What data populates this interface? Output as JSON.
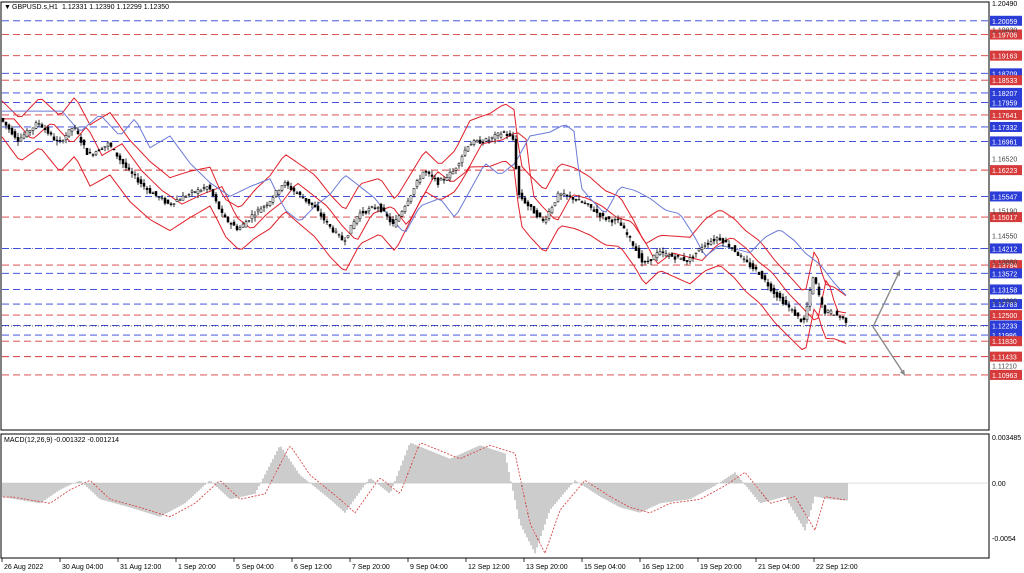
{
  "header": {
    "symbol_label": "GBPUSD.s,H1",
    "ohlc_label": "1.12331 1.12390 1.12299 1.12350"
  },
  "macd_header": {
    "label": "MACD(12,26,9)",
    "values": "-0.001322 -0.001214"
  },
  "colors": {
    "blue_level": "#2b3dd6",
    "red_level": "#d63a3a",
    "band": "#e0202a",
    "ma": "#6b7bd6",
    "candle": "#000000",
    "macd_hist": "#9a9a9a",
    "signal": "#d64a4a",
    "arrow": "#8a8a8a"
  },
  "price_axis": {
    "top_label": "1.20490",
    "grey_ticks": [
      "1.19830",
      "1.16520",
      "1.15190",
      "1.14550",
      "1.13880",
      "1.12880",
      "1.11210"
    ]
  },
  "macd_axis": {
    "top": "0.003485",
    "zero": "0.00",
    "bottom": "-0.0054"
  },
  "time_axis": [
    "26 Aug 2022",
    "30 Aug 04:00",
    "31 Aug 12:00",
    "1 Sep 20:00",
    "5 Sep 04:00",
    "6 Sep 12:00",
    "7 Sep 20:00",
    "9 Sep 04:00",
    "12 Sep 12:00",
    "13 Sep 20:00",
    "15 Sep 04:00",
    "16 Sep 12:00",
    "19 Sep 20:00",
    "21 Sep 04:00",
    "22 Sep 12:00"
  ],
  "chart_data": {
    "type": "candlestick",
    "symbol": "GBPUSD.s",
    "timeframe": "H1",
    "price_ylim": [
      1.096,
      1.2049
    ],
    "levels": [
      {
        "value": 1.20059,
        "label": "1.20059",
        "color": "blue"
      },
      {
        "value": 1.19706,
        "label": "1.19706",
        "color": "red"
      },
      {
        "value": 1.19163,
        "label": "1.19163",
        "color": "red"
      },
      {
        "value": 1.18709,
        "label": "1.18709",
        "color": "blue"
      },
      {
        "value": 1.18533,
        "label": "1.18533",
        "color": "red"
      },
      {
        "value": 1.18207,
        "label": "1.18207",
        "color": "blue"
      },
      {
        "value": 1.17959,
        "label": "1.17959",
        "color": "blue"
      },
      {
        "value": 1.17641,
        "label": "1.17641",
        "color": "red"
      },
      {
        "value": 1.17332,
        "label": "1.17332",
        "color": "blue"
      },
      {
        "value": 1.16961,
        "label": "1.16961",
        "color": "blue"
      },
      {
        "value": 1.16223,
        "label": "1.16223",
        "color": "red"
      },
      {
        "value": 1.15547,
        "label": "1.15547",
        "color": "blue"
      },
      {
        "value": 1.15017,
        "label": "1.15017",
        "color": "red"
      },
      {
        "value": 1.14212,
        "label": "1.14212",
        "color": "blue"
      },
      {
        "value": 1.13784,
        "label": "1.13784",
        "color": "red"
      },
      {
        "value": 1.13572,
        "label": "1.13572",
        "color": "blue"
      },
      {
        "value": 1.13158,
        "label": "1.13158",
        "color": "blue"
      },
      {
        "value": 1.12783,
        "label": "1.12783",
        "color": "blue"
      },
      {
        "value": 1.125,
        "label": "1.12500",
        "color": "red"
      },
      {
        "value": 1.12233,
        "label": "1.12233",
        "color": "blue"
      },
      {
        "value": 1.11986,
        "label": "1.11986",
        "color": "blue"
      },
      {
        "value": 1.1183,
        "label": "1.11830",
        "color": "red"
      },
      {
        "value": 1.11433,
        "label": "1.11433",
        "color": "red"
      },
      {
        "value": 1.10963,
        "label": "1.10963",
        "color": "red"
      }
    ],
    "price_path": [
      [
        0,
        1.176
      ],
      [
        20,
        1.17
      ],
      [
        40,
        1.1745
      ],
      [
        60,
        1.169
      ],
      [
        75,
        1.1735
      ],
      [
        90,
        1.166
      ],
      [
        110,
        1.169
      ],
      [
        130,
        1.162
      ],
      [
        150,
        1.157
      ],
      [
        170,
        1.1535
      ],
      [
        190,
        1.156
      ],
      [
        210,
        1.158
      ],
      [
        225,
        1.15
      ],
      [
        240,
        1.147
      ],
      [
        255,
        1.151
      ],
      [
        270,
        1.154
      ],
      [
        285,
        1.159
      ],
      [
        300,
        1.156
      ],
      [
        315,
        1.153
      ],
      [
        330,
        1.148
      ],
      [
        345,
        1.144
      ],
      [
        360,
        1.151
      ],
      [
        380,
        1.153
      ],
      [
        395,
        1.148
      ],
      [
        410,
        1.155
      ],
      [
        425,
        1.162
      ],
      [
        440,
        1.159
      ],
      [
        455,
        1.162
      ],
      [
        470,
        1.169
      ],
      [
        490,
        1.17
      ],
      [
        505,
        1.172
      ],
      [
        515,
        1.17
      ],
      [
        520,
        1.156
      ],
      [
        530,
        1.153
      ],
      [
        545,
        1.149
      ],
      [
        560,
        1.156
      ],
      [
        575,
        1.155
      ],
      [
        590,
        1.153
      ],
      [
        605,
        1.15
      ],
      [
        620,
        1.149
      ],
      [
        635,
        1.143
      ],
      [
        645,
        1.138
      ],
      [
        660,
        1.141
      ],
      [
        675,
        1.14
      ],
      [
        690,
        1.139
      ],
      [
        705,
        1.143
      ],
      [
        720,
        1.145
      ],
      [
        735,
        1.142
      ],
      [
        745,
        1.139
      ],
      [
        760,
        1.136
      ],
      [
        775,
        1.131
      ],
      [
        790,
        1.127
      ],
      [
        805,
        1.123
      ],
      [
        815,
        1.135
      ],
      [
        825,
        1.126
      ],
      [
        835,
        1.1255
      ],
      [
        848,
        1.1235
      ]
    ],
    "macd_ylim": [
      -0.0054,
      0.003485
    ],
    "macd_histogram_path": [
      [
        0,
        -0.001
      ],
      [
        40,
        -0.0015
      ],
      [
        60,
        -0.0005
      ],
      [
        80,
        0.0002
      ],
      [
        100,
        -0.0012
      ],
      [
        130,
        -0.0018
      ],
      [
        160,
        -0.0025
      ],
      [
        185,
        -0.0015
      ],
      [
        210,
        0.0002
      ],
      [
        230,
        -0.0012
      ],
      [
        255,
        -0.0008
      ],
      [
        280,
        0.0028
      ],
      [
        300,
        0.0006
      ],
      [
        330,
        -0.0012
      ],
      [
        345,
        -0.0022
      ],
      [
        370,
        0.0004
      ],
      [
        390,
        -0.0008
      ],
      [
        410,
        0.003
      ],
      [
        430,
        0.0024
      ],
      [
        450,
        0.0018
      ],
      [
        480,
        0.0028
      ],
      [
        505,
        0.0022
      ],
      [
        520,
        -0.003
      ],
      [
        535,
        -0.0052
      ],
      [
        550,
        -0.002
      ],
      [
        575,
        0.0002
      ],
      [
        600,
        -0.001
      ],
      [
        620,
        -0.0018
      ],
      [
        640,
        -0.0022
      ],
      [
        660,
        -0.0015
      ],
      [
        690,
        -0.0012
      ],
      [
        715,
        -0.0002
      ],
      [
        735,
        0.0008
      ],
      [
        760,
        -0.0015
      ],
      [
        785,
        -0.001
      ],
      [
        805,
        -0.0035
      ],
      [
        815,
        -0.001
      ],
      [
        830,
        -0.0012
      ],
      [
        848,
        -0.0013
      ]
    ],
    "arrows": [
      {
        "from": [
          1.122,
          848
        ],
        "to": [
          1.1365,
          900
        ],
        "direction": "up"
      },
      {
        "from": [
          1.122,
          848
        ],
        "to": [
          1.1095,
          905
        ],
        "direction": "down"
      }
    ]
  }
}
